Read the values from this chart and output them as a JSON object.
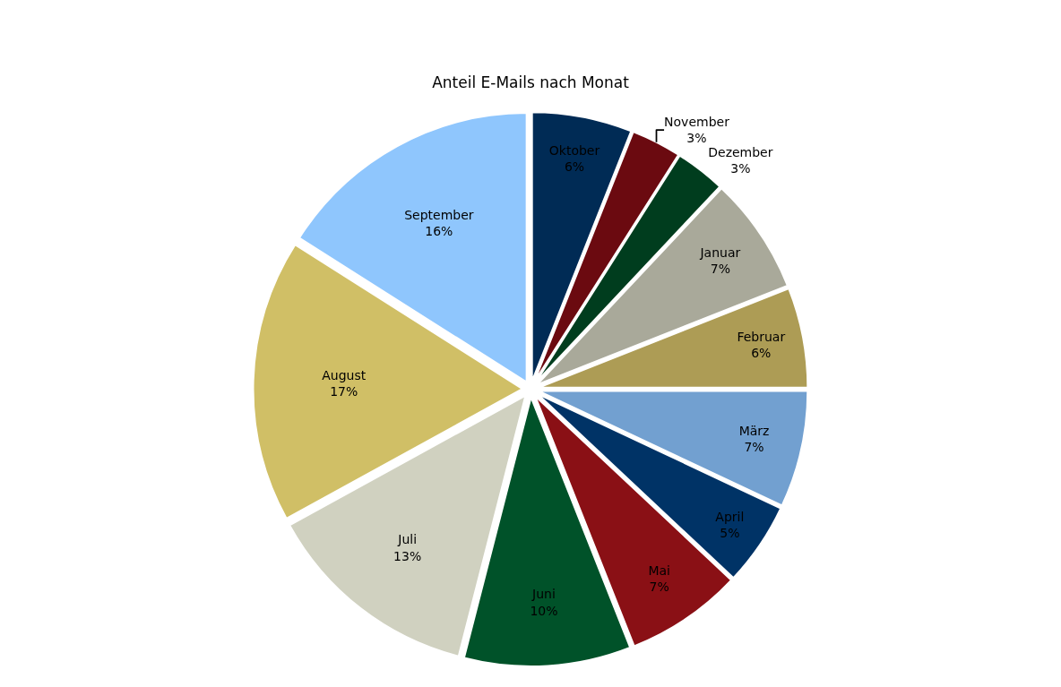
{
  "chart_data": {
    "type": "pie",
    "title": "Anteil E-Mails nach Monat",
    "categories": [
      "Oktober",
      "November",
      "Dezember",
      "Januar",
      "Februar",
      "März",
      "April",
      "Mai",
      "Juni",
      "Juli",
      "August",
      "September"
    ],
    "values": [
      6,
      3,
      3,
      7,
      6,
      7,
      5,
      7,
      10,
      13,
      17,
      16
    ],
    "value_labels": [
      "6%",
      "3%",
      "3%",
      "7%",
      "6%",
      "7%",
      "5%",
      "7%",
      "10%",
      "13%",
      "17%",
      "16%"
    ],
    "colors": [
      "#002b55",
      "#6b0a10",
      "#003d1e",
      "#a9a99a",
      "#ad9c55",
      "#72a0d0",
      "#003366",
      "#8a1015",
      "#005229",
      "#d0d1c0",
      "#d0bf66",
      "#8fc6fd"
    ],
    "legend": false
  }
}
